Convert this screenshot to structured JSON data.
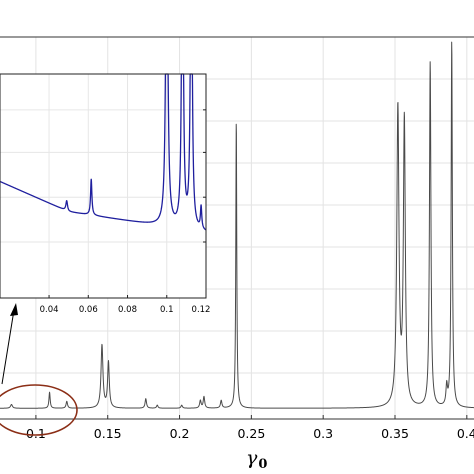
{
  "chart_data": [
    {
      "type": "line",
      "xlabel": "γ",
      "xlabel_sub": "0",
      "ylabel": "",
      "title": "",
      "xlim": [
        0.075,
        0.405
      ],
      "ylim": [
        0,
        1
      ],
      "xticks": [
        "0.1",
        "0.15",
        "0.2",
        "0.25",
        "0.3",
        "0.35",
        "0.4"
      ],
      "xtick_values": [
        0.1,
        0.15,
        0.2,
        0.25,
        0.3,
        0.35,
        0.4
      ],
      "grid": true,
      "line_color": "#4a4a4a",
      "annotation_ellipse_color": "#8b2e16",
      "baseline": 0.028,
      "peaks": [
        {
          "x": 0.083,
          "h": 0.01,
          "w": 0.0008
        },
        {
          "x": 0.1095,
          "h": 0.042,
          "w": 0.0005
        },
        {
          "x": 0.1215,
          "h": 0.018,
          "w": 0.0006
        },
        {
          "x": 0.146,
          "h": 0.165,
          "w": 0.0008
        },
        {
          "x": 0.1505,
          "h": 0.12,
          "w": 0.0007
        },
        {
          "x": 0.1765,
          "h": 0.025,
          "w": 0.0006
        },
        {
          "x": 0.1845,
          "h": 0.008,
          "w": 0.0006
        },
        {
          "x": 0.2015,
          "h": 0.008,
          "w": 0.0006
        },
        {
          "x": 0.2145,
          "h": 0.02,
          "w": 0.0006
        },
        {
          "x": 0.217,
          "h": 0.03,
          "w": 0.0006
        },
        {
          "x": 0.229,
          "h": 0.02,
          "w": 0.0006
        },
        {
          "x": 0.2395,
          "h": 0.755,
          "w": 0.0004
        },
        {
          "x": 0.352,
          "h": 0.78,
          "w": 0.0009
        },
        {
          "x": 0.3565,
          "h": 0.745,
          "w": 0.0008
        },
        {
          "x": 0.3745,
          "h": 0.905,
          "w": 0.0006
        },
        {
          "x": 0.386,
          "h": 0.05,
          "w": 0.0006
        },
        {
          "x": 0.3895,
          "h": 0.96,
          "w": 0.0005
        }
      ]
    },
    {
      "type": "line",
      "inset": true,
      "xlabel": "",
      "ylabel": "",
      "title": "",
      "xlim": [
        0.015,
        0.12
      ],
      "ylim": [
        0,
        1
      ],
      "xticks": [
        "0.04",
        "0.06",
        "0.08",
        "0.1",
        "0.12"
      ],
      "xtick_values": [
        0.04,
        0.06,
        0.08,
        0.1,
        0.12
      ],
      "grid": true,
      "line_color": "#1f1f9e",
      "trend": {
        "x_start": 0.015,
        "x_end": 0.12,
        "y_start": 0.52,
        "y_mid_x": 0.05,
        "y_mid": 0.385,
        "y_end": 0.29
      },
      "peaks": [
        {
          "x": 0.049,
          "h": 0.045,
          "w": 0.0005
        },
        {
          "x": 0.0615,
          "h": 0.16,
          "w": 0.0004
        },
        {
          "x": 0.1,
          "h": 1.6,
          "w": 0.0006
        },
        {
          "x": 0.108,
          "h": 1.6,
          "w": 0.0005
        },
        {
          "x": 0.1125,
          "h": 1.6,
          "w": 0.0005
        },
        {
          "x": 0.1175,
          "h": 0.1,
          "w": 0.0004
        }
      ]
    }
  ]
}
